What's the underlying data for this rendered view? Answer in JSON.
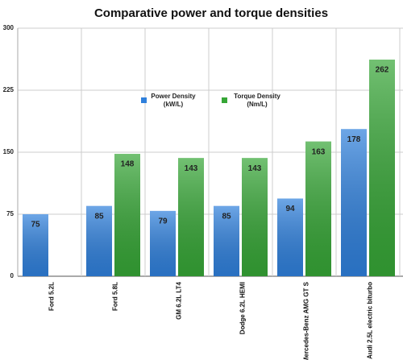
{
  "chart_data": {
    "type": "bar",
    "title": "Comparative power and torque densities",
    "categories": [
      "Ford 5.2L",
      "Ford 5.8L",
      "GM 6.2L LT4",
      "Dodge 6.2L HEMI",
      "Mercedes-Benz AMG GT S",
      "Audi 2.5L electric biturbo"
    ],
    "series": [
      {
        "name": "Power Density (kW/L)",
        "color": "#2f80dc",
        "values": [
          75,
          85,
          79,
          85,
          94,
          178
        ]
      },
      {
        "name": "Torque Density (Nm/L)",
        "color": "#36a636",
        "values": [
          null,
          148,
          143,
          143,
          163,
          262
        ]
      }
    ],
    "ylim": [
      0,
      300
    ],
    "yticks": [
      0,
      75,
      150,
      225,
      300
    ],
    "grid": true
  }
}
